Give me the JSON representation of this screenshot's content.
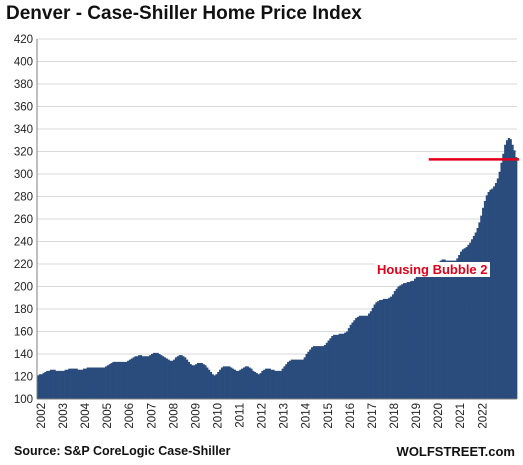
{
  "chart_data": {
    "type": "bar",
    "title": "Denver  - Case-Shiller Home Price Index",
    "source": "Source: S&P CoreLogic Case-Shiller",
    "brand": "WOLFSTREET.com",
    "annotation": "Housing Bubble 2",
    "reference_line": {
      "y": 313,
      "color": "#e3001b"
    },
    "bar_color": "#2a4c7d",
    "grid": true,
    "ylim": [
      100,
      420
    ],
    "yticks": [
      100,
      120,
      140,
      160,
      180,
      200,
      220,
      240,
      260,
      280,
      300,
      320,
      340,
      360,
      380,
      400,
      420
    ],
    "year_labels": [
      "2002",
      "2003",
      "2004",
      "2005",
      "2006",
      "2007",
      "2008",
      "2009",
      "2010",
      "2011",
      "2012",
      "2013",
      "2014",
      "2015",
      "2016",
      "2017",
      "2018",
      "2019",
      "2020",
      "2021",
      "2022"
    ],
    "start": "2002-01",
    "values": [
      121,
      122,
      122,
      123,
      124,
      125,
      125,
      126,
      126,
      126,
      125,
      125,
      125,
      125,
      125,
      126,
      126,
      127,
      127,
      127,
      127,
      127,
      126,
      126,
      126,
      127,
      127,
      128,
      128,
      128,
      128,
      128,
      128,
      128,
      128,
      128,
      128,
      129,
      130,
      131,
      132,
      133,
      133,
      133,
      133,
      133,
      133,
      133,
      133,
      134,
      135,
      136,
      137,
      138,
      138,
      139,
      139,
      138,
      138,
      138,
      138,
      139,
      140,
      141,
      141,
      141,
      140,
      139,
      138,
      137,
      136,
      135,
      134,
      134,
      135,
      137,
      138,
      139,
      139,
      138,
      137,
      135,
      133,
      131,
      130,
      130,
      131,
      132,
      132,
      132,
      131,
      130,
      128,
      126,
      124,
      122,
      121,
      122,
      124,
      126,
      128,
      129,
      129,
      129,
      129,
      128,
      127,
      126,
      125,
      125,
      126,
      127,
      128,
      129,
      129,
      128,
      127,
      125,
      124,
      123,
      122,
      123,
      125,
      126,
      127,
      127,
      127,
      126,
      126,
      125,
      125,
      125,
      125,
      127,
      129,
      131,
      133,
      134,
      135,
      135,
      135,
      135,
      135,
      135,
      135,
      137,
      140,
      142,
      144,
      146,
      147,
      147,
      147,
      147,
      147,
      147,
      148,
      150,
      152,
      154,
      156,
      157,
      157,
      157,
      158,
      158,
      158,
      159,
      160,
      163,
      166,
      168,
      170,
      172,
      173,
      174,
      174,
      174,
      174,
      174,
      176,
      178,
      181,
      184,
      186,
      187,
      188,
      188,
      189,
      189,
      189,
      190,
      191,
      193,
      196,
      198,
      200,
      201,
      202,
      203,
      203,
      204,
      204,
      205,
      205,
      207,
      210,
      213,
      215,
      216,
      217,
      218,
      218,
      218,
      218,
      218,
      218,
      220,
      222,
      223,
      224,
      224,
      223,
      223,
      223,
      223,
      223,
      223,
      225,
      228,
      231,
      233,
      234,
      235,
      237,
      239,
      242,
      245,
      248,
      252,
      257,
      263,
      270,
      276,
      281,
      284,
      286,
      287,
      289,
      292,
      296,
      302,
      310,
      318,
      326,
      330,
      332,
      331,
      326,
      321,
      315
    ]
  }
}
